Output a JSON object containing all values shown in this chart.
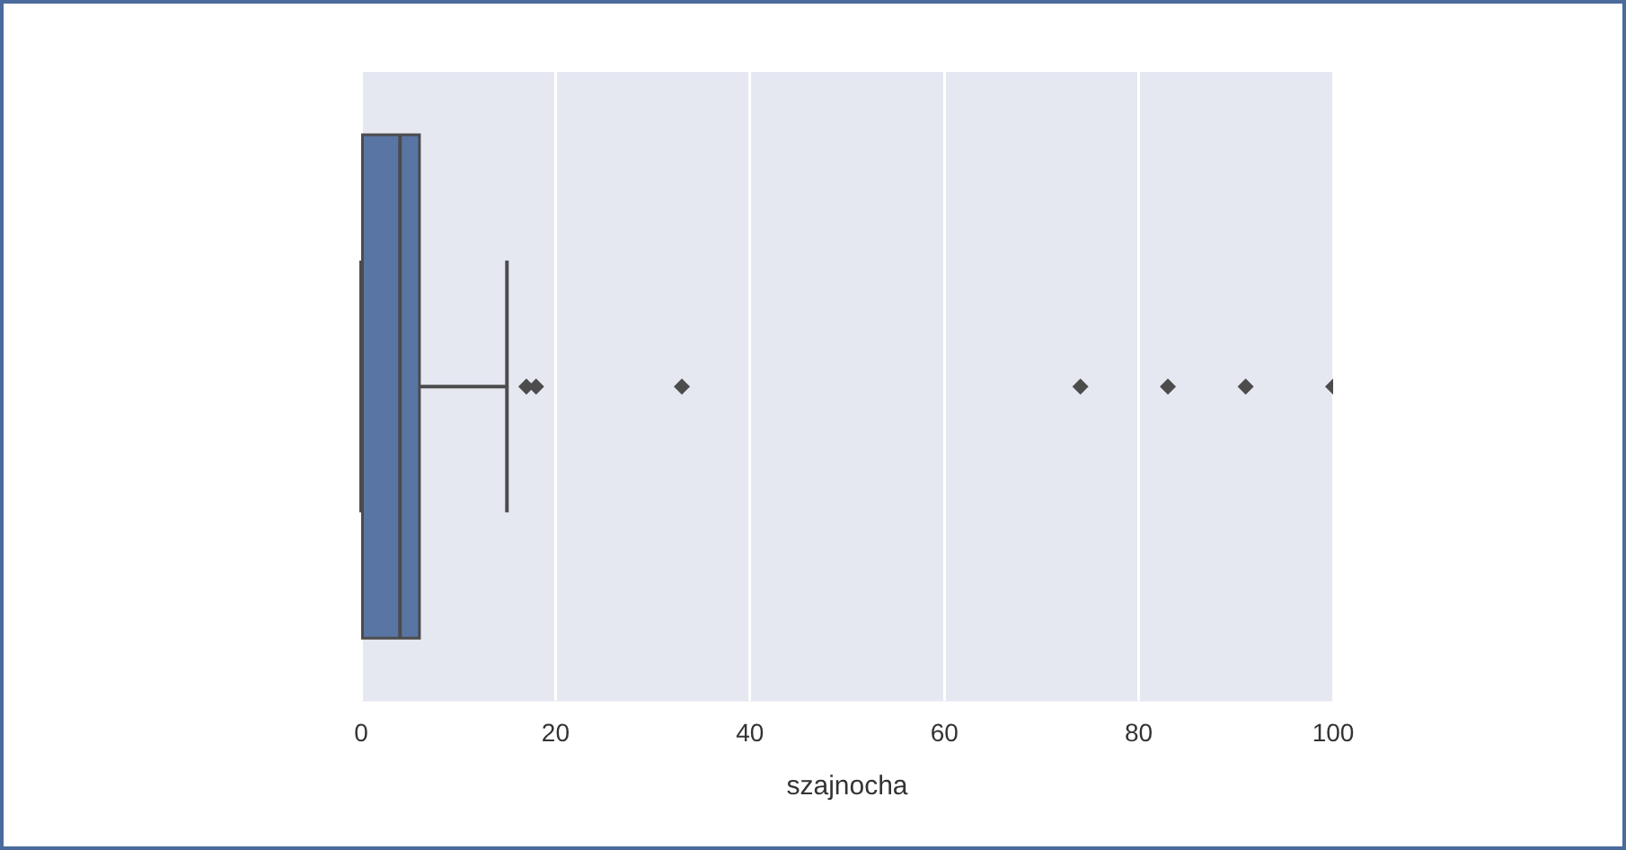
{
  "chart_data": {
    "type": "box",
    "orientation": "horizontal",
    "categories": [
      null
    ],
    "xlabel": "szajnocha",
    "boxes": [
      {
        "low": 0,
        "q1": 0,
        "median": 4,
        "q3": 6,
        "high": 15,
        "outliers": [
          17,
          18,
          33,
          74,
          83,
          91,
          100
        ]
      }
    ],
    "color": "#5975a4",
    "marker": "diamond",
    "grid": "x",
    "xlim": [
      0,
      100
    ],
    "xticks": [
      0,
      20,
      40,
      60,
      80,
      100
    ]
  }
}
